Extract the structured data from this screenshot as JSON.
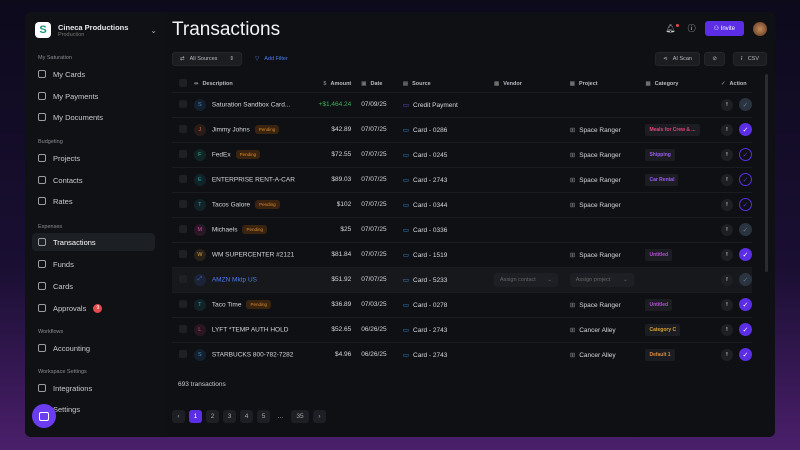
{
  "org": {
    "name": "Cineca Productions",
    "env": "Production"
  },
  "sidebar": {
    "sections": [
      {
        "title": "My Saturation",
        "items": [
          {
            "label": "My Cards"
          },
          {
            "label": "My Payments"
          },
          {
            "label": "My Documents"
          }
        ]
      },
      {
        "title": "Budgeting",
        "items": [
          {
            "label": "Projects"
          },
          {
            "label": "Contacts"
          },
          {
            "label": "Rates"
          }
        ]
      },
      {
        "title": "Expenses",
        "items": [
          {
            "label": "Transactions",
            "active": true
          },
          {
            "label": "Funds"
          },
          {
            "label": "Cards"
          },
          {
            "label": "Approvals",
            "badge": "9"
          }
        ]
      },
      {
        "title": "Workflows",
        "items": [
          {
            "label": "Accounting"
          }
        ]
      },
      {
        "title": "Workspace Settings",
        "items": [
          {
            "label": "Integrations"
          },
          {
            "label": "Settings"
          }
        ]
      }
    ]
  },
  "header": {
    "title": "Transactions",
    "invite": "Invite"
  },
  "toolbar": {
    "sources": "All Sources",
    "add_filter": "Add Filter",
    "ai_scan": "AI Scan",
    "csv": "CSV"
  },
  "columns": [
    "Description",
    "Amount",
    "Date",
    "Source",
    "Vendor",
    "Project",
    "Category",
    "Action"
  ],
  "rows": [
    {
      "initial": "S",
      "color": "#3b8fd9",
      "desc": "Saturation Sandbox Card...",
      "amount": "+$1,464.24",
      "date": "07/09/25",
      "source": "Credit Payment",
      "project": "",
      "category": "",
      "catColor": "",
      "status": "gray"
    },
    {
      "initial": "J",
      "color": "#d9703b",
      "desc": "Jimmy Johns",
      "pending": "Pending",
      "amount": "$42.89",
      "date": "07/07/25",
      "source": "Card - 0286",
      "project": "Space Ranger",
      "category": "Meals for Crew & ...",
      "catColor": "#e0457b",
      "status": "filled"
    },
    {
      "initial": "F",
      "color": "#2cb5a0",
      "desc": "FedEx",
      "pending": "Pending",
      "amount": "$72.55",
      "date": "07/07/25",
      "source": "Card - 0245",
      "project": "Space Ranger",
      "category": "Shipping",
      "catColor": "#9b5cf6",
      "status": "outline"
    },
    {
      "initial": "E",
      "color": "#2ca5b5",
      "desc": "ENTERPRISE RENT-A-CAR",
      "amount": "$89.03",
      "date": "07/07/25",
      "source": "Card - 2743",
      "project": "Space Ranger",
      "category": "Car Rental",
      "catColor": "#9b5cf6",
      "status": "outline"
    },
    {
      "initial": "T",
      "color": "#2ca5b5",
      "desc": "Tacos Galore",
      "pending": "Pending",
      "amount": "$102",
      "date": "07/07/25",
      "source": "Card - 0344",
      "project": "Space Ranger",
      "category": "",
      "catColor": "",
      "status": "outline"
    },
    {
      "initial": "M",
      "color": "#d94aa0",
      "desc": "Michaels",
      "pending": "Pending",
      "amount": "$25",
      "date": "07/07/25",
      "source": "Card - 0336",
      "project": "",
      "category": "",
      "catColor": "",
      "status": "gray"
    },
    {
      "initial": "W",
      "color": "#d9a03b",
      "desc": "WM SUPERCENTER #2121",
      "amount": "$81.84",
      "date": "07/07/25",
      "source": "Card - 1519",
      "project": "Space Ranger",
      "category": "Untitled",
      "catColor": "#b44fd6",
      "status": "filled"
    },
    {
      "initial": "⤢",
      "color": "#4a6ee0",
      "desc": "AMZN Mktp US",
      "link": true,
      "amount": "$51.92",
      "date": "07/07/25",
      "source": "Card - 5233",
      "vendorPlaceholder": "Assign contact",
      "projectPlaceholder": "Assign project",
      "project": "",
      "category": "",
      "catColor": "",
      "status": "gray"
    },
    {
      "initial": "T",
      "color": "#2ca5b5",
      "desc": "Taco Time",
      "pending": "Pending",
      "amount": "$36.89",
      "date": "07/03/25",
      "source": "Card - 0278",
      "project": "Space Ranger",
      "category": "Untitled",
      "catColor": "#b44fd6",
      "status": "filled"
    },
    {
      "initial": "L",
      "color": "#e0457b",
      "desc": "LYFT *TEMP AUTH HOLD",
      "amount": "$52.65",
      "date": "06/26/25",
      "source": "Card - 2743",
      "project": "Cancer Alley",
      "category": "Category C",
      "catColor": "#e0a030",
      "status": "filled"
    },
    {
      "initial": "S",
      "color": "#3b8fd9",
      "desc": "STARBUCKS 800-782-7282",
      "amount": "$4.96",
      "date": "06/26/25",
      "source": "Card - 2743",
      "project": "Cancer Alley",
      "category": "Default 1",
      "catColor": "#e08a3a",
      "status": "filled"
    }
  ],
  "footer": {
    "count": "693 transactions",
    "pages": [
      "1",
      "2",
      "3",
      "4",
      "5",
      "...",
      "35"
    ],
    "current": "1"
  },
  "colors": {
    "accent": "#5b2ee6",
    "positive": "#3fae5a"
  }
}
